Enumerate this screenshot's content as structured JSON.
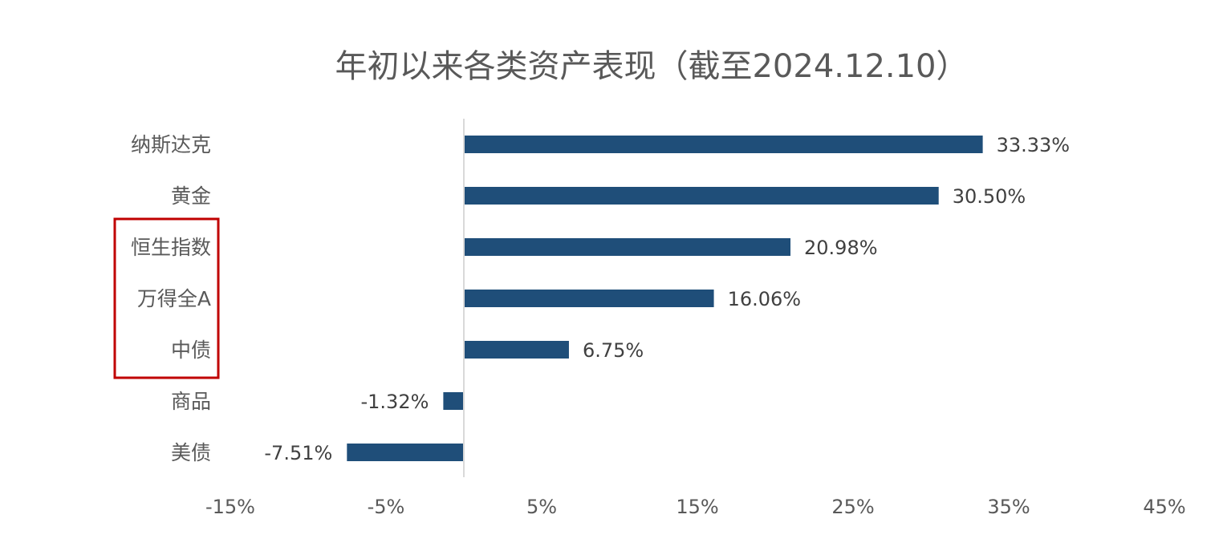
{
  "chart_data": {
    "type": "bar",
    "orientation": "horizontal",
    "title": "年初以来各类资产表现（截至2024.12.10）",
    "categories": [
      "纳斯达克",
      "黄金",
      "恒生指数",
      "万得全A",
      "中债",
      "商品",
      "美债"
    ],
    "values": [
      33.33,
      30.5,
      20.98,
      16.06,
      6.75,
      -1.32,
      -7.51
    ],
    "value_labels": [
      "33.33%",
      "30.50%",
      "20.98%",
      "16.06%",
      "6.75%",
      "-1.32%",
      "-7.51%"
    ],
    "x_ticks": [
      -15,
      -5,
      5,
      15,
      25,
      35,
      45
    ],
    "x_tick_labels": [
      "-15%",
      "-5%",
      "5%",
      "15%",
      "25%",
      "35%",
      "45%"
    ],
    "xlim": [
      -15,
      45
    ],
    "highlighted_categories": [
      "恒生指数",
      "万得全A",
      "中债"
    ],
    "grid": false,
    "legend": "none",
    "colors": {
      "bar": "#1f4e79",
      "highlight_box": "#c00000",
      "axis": "#d9d9d9"
    }
  }
}
